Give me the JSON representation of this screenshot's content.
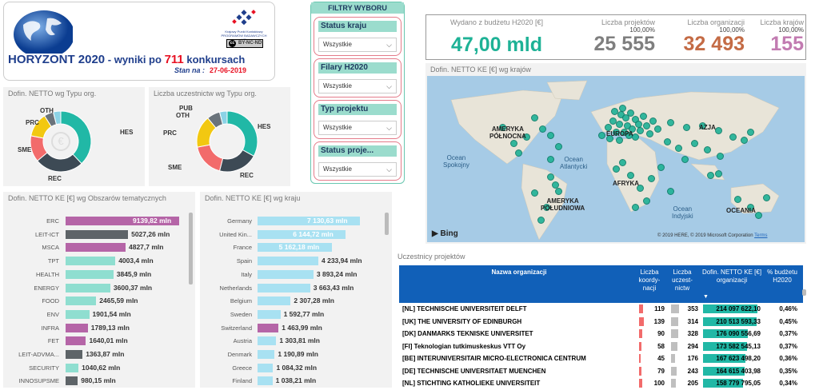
{
  "header": {
    "title_prefix": "HORYZONT 2020",
    "title_mid": " - wyniki po ",
    "title_count": "711",
    "title_suffix": " konkursach",
    "stan_label": "Stan na :",
    "stan_date": "27-06-2019",
    "logo_kpk_line1": "Krajowy Punkt Kontaktowy",
    "logo_kpk_line2": "PROGRAMÓW BADAWCZYCH UE",
    "license": "BY-NC-ND"
  },
  "filters": {
    "title": "FILTRY WYBORU",
    "items": [
      {
        "label": "Status kraju",
        "value": "Wszystkie"
      },
      {
        "label": "Filary H2020",
        "value": "Wszystkie"
      },
      {
        "label": "Typ projektu",
        "value": "Wszystkie"
      },
      {
        "label": "Status proje...",
        "value": "Wszystkie"
      }
    ]
  },
  "kpis": [
    {
      "label": "Wydano z budżetu H2020 [€]",
      "pct": "",
      "value": "47,00 mld",
      "color": "#1eb296"
    },
    {
      "label": "Liczba projektów",
      "pct": "100,00%",
      "value": "25 555",
      "color": "#7f7f7f"
    },
    {
      "label": "Liczba organizacji",
      "pct": "100,00%",
      "value": "32 493",
      "color": "#c46b45"
    },
    {
      "label": "Liczba krajów",
      "pct": "100,00%",
      "value": "155",
      "color": "#c27bb1"
    }
  ],
  "donut1": {
    "title": "Dofin. NETTO wg Typu org.",
    "segments": [
      {
        "name": "HES",
        "value": 0.38,
        "color": "#21b8a6"
      },
      {
        "name": "REC",
        "value": 0.26,
        "color": "#3d4a55"
      },
      {
        "name": "SME",
        "value": 0.14,
        "color": "#f26b6b"
      },
      {
        "name": "PRC",
        "value": 0.13,
        "color": "#f2c811"
      },
      {
        "name": "OTH",
        "value": 0.05,
        "color": "#6a737b"
      },
      {
        "name": "",
        "value": 0.04,
        "color": "#8bd3e6"
      }
    ]
  },
  "donut2": {
    "title": "Liczba uczestnictw wg Typu org.",
    "segments": [
      {
        "name": "HES",
        "value": 0.33,
        "color": "#21b8a6"
      },
      {
        "name": "REC",
        "value": 0.21,
        "color": "#3d4a55"
      },
      {
        "name": "SME",
        "value": 0.18,
        "color": "#f26b6b"
      },
      {
        "name": "PRC",
        "value": 0.17,
        "color": "#f2c811"
      },
      {
        "name": "OTH",
        "value": 0.07,
        "color": "#6a737b"
      },
      {
        "name": "PUB",
        "value": 0.04,
        "color": "#8bd3e6"
      }
    ]
  },
  "bars_themes": {
    "title": "Dofin. NETTO KE [€] wg Obszarów tematycznych",
    "rows": [
      {
        "cat": "ERC",
        "value": 9139.82,
        "label": "9139,82 mln",
        "color": "#b565a7"
      },
      {
        "cat": "LEIT-ICT",
        "value": 5027.26,
        "label": "5027,26 mln",
        "color": "#5e6468"
      },
      {
        "cat": "MSCA",
        "value": 4827.7,
        "label": "4827,7 mln",
        "color": "#b565a7"
      },
      {
        "cat": "TPT",
        "value": 4003.4,
        "label": "4003,4 mln",
        "color": "#8fded0"
      },
      {
        "cat": "HEALTH",
        "value": 3845.9,
        "label": "3845,9 mln",
        "color": "#8fded0"
      },
      {
        "cat": "ENERGY",
        "value": 3600.37,
        "label": "3600,37 mln",
        "color": "#8fded0"
      },
      {
        "cat": "FOOD",
        "value": 2465.59,
        "label": "2465,59 mln",
        "color": "#8fded0"
      },
      {
        "cat": "ENV",
        "value": 1901.54,
        "label": "1901,54 mln",
        "color": "#8fded0"
      },
      {
        "cat": "INFRA",
        "value": 1789.13,
        "label": "1789,13 mln",
        "color": "#b565a7"
      },
      {
        "cat": "FET",
        "value": 1640.01,
        "label": "1640,01 mln",
        "color": "#b565a7"
      },
      {
        "cat": "LEIT-ADVMA...",
        "value": 1363.87,
        "label": "1363,87 mln",
        "color": "#5e6468"
      },
      {
        "cat": "SECURITY",
        "value": 1040.62,
        "label": "1040,62 mln",
        "color": "#8fded0"
      },
      {
        "cat": "INNOSUPSME",
        "value": 980.15,
        "label": "980,15 mln",
        "color": "#5e6468"
      }
    ]
  },
  "bars_countries": {
    "title": "Dofin. NETTO KE [€] wg kraju",
    "rows": [
      {
        "cat": "Germany",
        "value": 7130.63,
        "label": "7 130,63 mln",
        "color": "#a8e1f2"
      },
      {
        "cat": "United Kin...",
        "value": 6144.72,
        "label": "6 144,72 mln",
        "color": "#a8e1f2"
      },
      {
        "cat": "France",
        "value": 5162.18,
        "label": "5 162,18 mln",
        "color": "#a8e1f2"
      },
      {
        "cat": "Spain",
        "value": 4233.94,
        "label": "4 233,94 mln",
        "color": "#a8e1f2"
      },
      {
        "cat": "Italy",
        "value": 3893.24,
        "label": "3 893,24 mln",
        "color": "#a8e1f2"
      },
      {
        "cat": "Netherlands",
        "value": 3663.43,
        "label": "3 663,43 mln",
        "color": "#a8e1f2"
      },
      {
        "cat": "Belgium",
        "value": 2307.28,
        "label": "2 307,28 mln",
        "color": "#a8e1f2"
      },
      {
        "cat": "Sweden",
        "value": 1592.77,
        "label": "1 592,77 mln",
        "color": "#a8e1f2"
      },
      {
        "cat": "Switzerland",
        "value": 1463.99,
        "label": "1 463,99 mln",
        "color": "#b565a7"
      },
      {
        "cat": "Austria",
        "value": 1303.81,
        "label": "1 303,81 mln",
        "color": "#a8e1f2"
      },
      {
        "cat": "Denmark",
        "value": 1190.89,
        "label": "1 190,89 mln",
        "color": "#a8e1f2"
      },
      {
        "cat": "Greece",
        "value": 1084.32,
        "label": "1 084,32 mln",
        "color": "#a8e1f2"
      },
      {
        "cat": "Finland",
        "value": 1038.21,
        "label": "1 038,21 mln",
        "color": "#a8e1f2"
      }
    ]
  },
  "map": {
    "title": "Dofin. NETTO KE [€] wg krajów",
    "continents": [
      "AMERYKA PÓŁNOCNA",
      "EUROPA",
      "AZJA",
      "AFRYKA",
      "AMERYKA POŁUDNIOWA",
      "OCEANIA"
    ],
    "oceans": [
      "Ocean Spokojny",
      "Ocean Atlantycki",
      "Ocean Indyjski"
    ],
    "bing": "Bing",
    "copyright": "© 2019 HERE, © 2019 Microsoft Corporation",
    "terms": "Terms"
  },
  "table": {
    "title": "Uczestnicy projektów",
    "headers": [
      "Nazwa organizacji",
      "Liczba koordy-nacji",
      "Liczba uczest-nictw",
      "Dofin. NETTO KE [€] organizacji",
      "% budżetu H2020"
    ],
    "rows": [
      {
        "name": "[NL] TECHNISCHE UNIVERSITEIT DELFT",
        "coord": 119,
        "part": 353,
        "fund": "214 097 622,10",
        "pct": "0,46%",
        "fr": 1.0
      },
      {
        "name": "[UK] THE UNIVERSITY OF EDINBURGH",
        "coord": 139,
        "part": 314,
        "fund": "210 513 593,33",
        "pct": "0,45%",
        "fr": 0.98
      },
      {
        "name": "[DK] DANMARKS TEKNISKE UNIVERSITET",
        "coord": 90,
        "part": 328,
        "fund": "176 090 556,69",
        "pct": "0,37%",
        "fr": 0.82
      },
      {
        "name": "[FI] Teknologian tutkimuskeskus VTT Oy",
        "coord": 58,
        "part": 294,
        "fund": "173 582 545,13",
        "pct": "0,37%",
        "fr": 0.81
      },
      {
        "name": "[BE] INTERUNIVERSITAIR MICRO-ELECTRONICA CENTRUM",
        "coord": 45,
        "part": 176,
        "fund": "167 623 498,20",
        "pct": "0,36%",
        "fr": 0.78
      },
      {
        "name": "[DE] TECHNISCHE UNIVERSITAET MUENCHEN",
        "coord": 79,
        "part": 243,
        "fund": "164 615 403,98",
        "pct": "0,35%",
        "fr": 0.77
      },
      {
        "name": "[NL] STICHTING KATHOLIEKE UNIVERSITEIT",
        "coord": 100,
        "part": 205,
        "fund": "158 779 795,05",
        "pct": "0,34%",
        "fr": 0.74
      }
    ]
  }
}
